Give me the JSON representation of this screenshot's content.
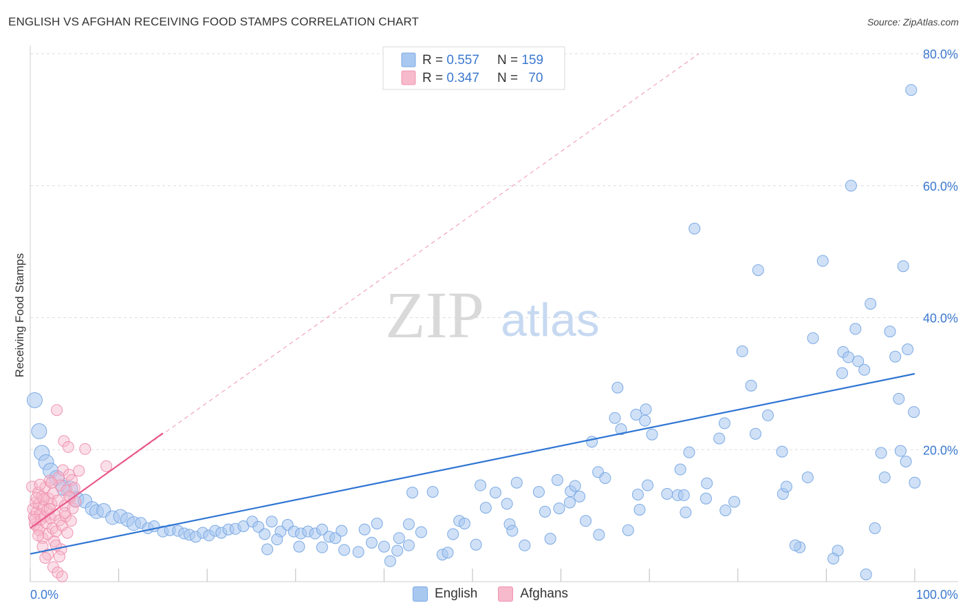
{
  "header": {
    "title": "ENGLISH VS AFGHAN RECEIVING FOOD STAMPS CORRELATION CHART",
    "source": "Source: ZipAtlas.com"
  },
  "colors": {
    "english_fill": "#a9c8f0",
    "english_stroke": "#7ba9e4",
    "english_line": "#2d74d3",
    "afghan_fill": "#f7b9cc",
    "afghan_stroke": "#ef93b0",
    "afghan_line": "#e8588a",
    "axis_text": "#3b78cf",
    "grid": "#dddddd"
  },
  "legend_top": {
    "rows": [
      {
        "r_label": "R = ",
        "r_value": "0.557",
        "n_label": "N = ",
        "n_value": "159"
      },
      {
        "r_label": "R = ",
        "r_value": "0.347",
        "n_label": "N = ",
        "n_value": "70"
      }
    ]
  },
  "legend_bottom": {
    "items": [
      {
        "label": "English"
      },
      {
        "label": "Afghans"
      }
    ]
  },
  "watermark": {
    "zip": "ZIP",
    "atlas": "atlas"
  },
  "chart_data": {
    "type": "scatter",
    "title": "ENGLISH VS AFGHAN RECEIVING FOOD STAMPS CORRELATION CHART",
    "xlabel": "",
    "ylabel": "Receiving Food Stamps",
    "xlim": [
      0,
      100
    ],
    "ylim": [
      0,
      80
    ],
    "x_tick_labels": [
      "0.0%",
      "100.0%"
    ],
    "y_tick_labels": [
      "20.0%",
      "40.0%",
      "60.0%",
      "80.0%"
    ],
    "y_ticks": [
      20,
      40,
      60,
      80
    ],
    "grid": true,
    "series": [
      {
        "name": "English",
        "r": 0.557,
        "n": 159,
        "trend": {
          "x0": 0,
          "y0": 4.2,
          "x1": 100,
          "y1": 31.5
        },
        "points": [
          [
            0.5,
            27.5
          ],
          [
            1,
            22.8
          ],
          [
            1.3,
            19.5
          ],
          [
            1.8,
            18.1
          ],
          [
            2.3,
            16.8
          ],
          [
            3,
            15.7
          ],
          [
            3.8,
            14.2
          ],
          [
            4.5,
            14.1
          ],
          [
            5.2,
            12.5
          ],
          [
            6.2,
            12.2
          ],
          [
            7,
            11.1
          ],
          [
            7.5,
            10.6
          ],
          [
            8.3,
            10.8
          ],
          [
            9.3,
            9.7
          ],
          [
            10.2,
            9.9
          ],
          [
            11,
            9.4
          ],
          [
            11.7,
            8.8
          ],
          [
            12.5,
            8.9
          ],
          [
            13.3,
            8.1
          ],
          [
            14,
            8.4
          ],
          [
            15,
            7.6
          ],
          [
            15.8,
            7.8
          ],
          [
            16.7,
            7.7
          ],
          [
            17.4,
            7.3
          ],
          [
            18,
            7.1
          ],
          [
            18.7,
            6.8
          ],
          [
            19.5,
            7.4
          ],
          [
            20.2,
            7
          ],
          [
            20.9,
            7.7
          ],
          [
            21.6,
            7.4
          ],
          [
            22.4,
            7.9
          ],
          [
            23.2,
            8
          ],
          [
            24.1,
            8.4
          ],
          [
            25.1,
            9.1
          ],
          [
            25.8,
            8.3
          ],
          [
            26.5,
            7.2
          ],
          [
            27.3,
            9.1
          ],
          [
            28.3,
            7.6
          ],
          [
            29.1,
            8.6
          ],
          [
            29.8,
            7.6
          ],
          [
            30.6,
            7.3
          ],
          [
            31.4,
            7.6
          ],
          [
            32.2,
            7.3
          ],
          [
            33,
            7.9
          ],
          [
            33.8,
            6.8
          ],
          [
            34.5,
            6.6
          ],
          [
            35.2,
            7.7
          ],
          [
            26.8,
            4.9
          ],
          [
            27.9,
            6.4
          ],
          [
            30.4,
            5.3
          ],
          [
            33,
            5.2
          ],
          [
            35.5,
            4.8
          ],
          [
            37.1,
            4.5
          ],
          [
            37.8,
            7.9
          ],
          [
            38.6,
            5.9
          ],
          [
            39.2,
            8.8
          ],
          [
            40,
            5.3
          ],
          [
            40.7,
            3.1
          ],
          [
            41.5,
            4.7
          ],
          [
            42.8,
            5.5
          ],
          [
            41.7,
            6.6
          ],
          [
            42.8,
            8.7
          ],
          [
            43.2,
            13.5
          ],
          [
            44.2,
            7.5
          ],
          [
            45.5,
            13.6
          ],
          [
            46.6,
            4.1
          ],
          [
            47.2,
            4.4
          ],
          [
            47.8,
            7.2
          ],
          [
            48.5,
            9.2
          ],
          [
            49.1,
            8.8
          ],
          [
            50.4,
            5.6
          ],
          [
            50.9,
            14.6
          ],
          [
            51.5,
            11.2
          ],
          [
            52.6,
            13.5
          ],
          [
            53.9,
            11.8
          ],
          [
            54.2,
            8.7
          ],
          [
            54.5,
            7.7
          ],
          [
            55,
            15
          ],
          [
            55.9,
            5.5
          ],
          [
            57.5,
            13.6
          ],
          [
            58.2,
            10.6
          ],
          [
            58.8,
            6.5
          ],
          [
            59.6,
            15.4
          ],
          [
            59.8,
            11.1
          ],
          [
            61,
            12
          ],
          [
            61.1,
            13.7
          ],
          [
            61.6,
            14.5
          ],
          [
            62.1,
            12.9
          ],
          [
            62.8,
            9.2
          ],
          [
            63.5,
            21.2
          ],
          [
            64.2,
            16.6
          ],
          [
            64.3,
            7.1
          ],
          [
            65,
            15.7
          ],
          [
            66.1,
            24.8
          ],
          [
            66.4,
            29.4
          ],
          [
            66.8,
            23.1
          ],
          [
            67.6,
            7.8
          ],
          [
            68.5,
            25.3
          ],
          [
            68.7,
            13.2
          ],
          [
            68.9,
            10.9
          ],
          [
            69.5,
            24.4
          ],
          [
            69.6,
            26.1
          ],
          [
            69.8,
            14.6
          ],
          [
            70.3,
            22.3
          ],
          [
            72,
            13.3
          ],
          [
            73.2,
            13.1
          ],
          [
            73.5,
            17
          ],
          [
            73.9,
            13.1
          ],
          [
            74.1,
            10.5
          ],
          [
            74.5,
            19.6
          ],
          [
            75.1,
            53.5
          ],
          [
            76.4,
            12.6
          ],
          [
            76.5,
            14.9
          ],
          [
            77.9,
            21.7
          ],
          [
            78.5,
            24
          ],
          [
            78.6,
            10.8
          ],
          [
            79.6,
            12.1
          ],
          [
            80.5,
            34.9
          ],
          [
            81.5,
            29.7
          ],
          [
            82,
            22.4
          ],
          [
            82.3,
            47.2
          ],
          [
            83.4,
            25.2
          ],
          [
            85,
            19.7
          ],
          [
            85.1,
            13.3
          ],
          [
            85.5,
            14.4
          ],
          [
            87,
            5.2
          ],
          [
            87.9,
            15.8
          ],
          [
            88.5,
            36.9
          ],
          [
            89.6,
            48.6
          ],
          [
            91.3,
            4.7
          ],
          [
            91.8,
            31.6
          ],
          [
            91.9,
            34.8
          ],
          [
            92.5,
            34
          ],
          [
            93.3,
            38.3
          ],
          [
            93.6,
            33.4
          ],
          [
            94.3,
            32.1
          ],
          [
            95,
            42.1
          ],
          [
            95.5,
            8.1
          ],
          [
            96.2,
            19.5
          ],
          [
            96.6,
            15.8
          ],
          [
            97.2,
            37.9
          ],
          [
            97.8,
            34.1
          ],
          [
            98.2,
            27.7
          ],
          [
            98.4,
            19.8
          ],
          [
            98.7,
            47.8
          ],
          [
            99,
            18.2
          ],
          [
            99.2,
            35.2
          ],
          [
            99.9,
            25.7
          ],
          [
            100,
            15
          ],
          [
            94.5,
            1.1
          ],
          [
            90.8,
            3.5
          ],
          [
            86.5,
            5.5
          ],
          [
            92.8,
            60
          ],
          [
            99.6,
            74.5
          ]
        ]
      },
      {
        "name": "Afghans",
        "r": 0.347,
        "n": 70,
        "trend": {
          "x0": 0,
          "y0": 8.1,
          "x1": 15,
          "y1": 22.5
        },
        "trend_extended": {
          "x0": 0,
          "y0": 8.1,
          "x1": 75.6,
          "y1": 80
        },
        "points": [
          [
            0.2,
            14.4
          ],
          [
            0.3,
            11
          ],
          [
            0.4,
            9.8
          ],
          [
            0.5,
            8.7
          ],
          [
            0.6,
            12
          ],
          [
            0.7,
            10.5
          ],
          [
            0.8,
            8.3
          ],
          [
            0.9,
            13.5
          ],
          [
            0.95,
            11.8
          ],
          [
            1,
            7.8
          ],
          [
            1.1,
            10.2
          ],
          [
            1.2,
            9.4
          ],
          [
            1.3,
            12.9
          ],
          [
            1.4,
            6.6
          ],
          [
            1.5,
            11.3
          ],
          [
            1.6,
            9.9
          ],
          [
            1.7,
            14.3
          ],
          [
            1.8,
            8.9
          ],
          [
            1.9,
            10.8
          ],
          [
            2,
            7.2
          ],
          [
            2.1,
            12.6
          ],
          [
            2.2,
            15.3
          ],
          [
            2.3,
            9.6
          ],
          [
            2.4,
            11.8
          ],
          [
            2.5,
            8.1
          ],
          [
            2.6,
            13.4
          ],
          [
            2.7,
            6.1
          ],
          [
            2.8,
            10.1
          ],
          [
            2.9,
            7.6
          ],
          [
            3,
            26
          ],
          [
            3.1,
            12.3
          ],
          [
            3.2,
            15.8
          ],
          [
            3.3,
            9.3
          ],
          [
            3.4,
            14.6
          ],
          [
            3.5,
            4.9
          ],
          [
            3.6,
            8.5
          ],
          [
            3.7,
            16.9
          ],
          [
            3.8,
            21.3
          ],
          [
            3.9,
            11.5
          ],
          [
            4,
            9.9
          ],
          [
            4.1,
            13.8
          ],
          [
            4.2,
            7.4
          ],
          [
            4.3,
            20.4
          ],
          [
            4.4,
            16.2
          ],
          [
            4.5,
            12.7
          ],
          [
            4.6,
            9.2
          ],
          [
            4.7,
            15.4
          ],
          [
            4.8,
            11.1
          ],
          [
            5,
            14.2
          ],
          [
            5.1,
            12.1
          ],
          [
            5.5,
            16.8
          ],
          [
            6.2,
            20.1
          ],
          [
            8.6,
            17.5
          ],
          [
            1.4,
            5.3
          ],
          [
            2,
            4.1
          ],
          [
            2.6,
            2.2
          ],
          [
            3.1,
            1.4
          ],
          [
            3.6,
            0.8
          ],
          [
            1.7,
            3.6
          ],
          [
            2.9,
            5.5
          ],
          [
            3.3,
            3.8
          ],
          [
            0.5,
            9.4
          ],
          [
            0.9,
            7
          ],
          [
            1.5,
            12.5
          ],
          [
            2.2,
            11
          ],
          [
            2.4,
            15
          ],
          [
            3.9,
            10.4
          ],
          [
            1.1,
            14.7
          ],
          [
            4.4,
            12.9
          ],
          [
            0.7,
            12.7
          ]
        ]
      }
    ]
  }
}
